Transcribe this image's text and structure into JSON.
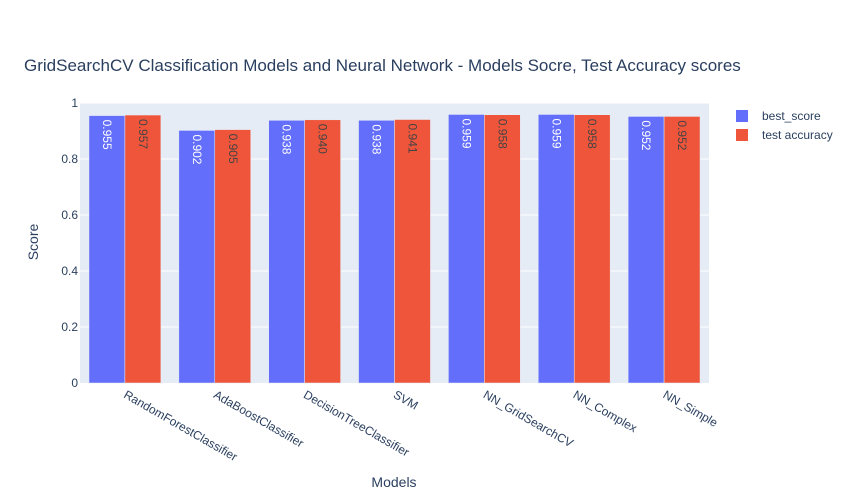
{
  "chart_data": {
    "type": "bar",
    "title": "GridSearchCV Classification Models and Neural Network - Models Socre, Test Accuracy scores",
    "xlabel": "Models",
    "ylabel": "Score",
    "ylim": [
      0,
      1
    ],
    "yticks": [
      "0",
      "0.2",
      "0.4",
      "0.6",
      "0.8",
      "1"
    ],
    "categories": [
      "RandomForestClassifier",
      "AdaBoostClassifier",
      "DecisionTreeClassifier",
      "SVM",
      "NN_GridSearchCV",
      "NN_Complex",
      "NN_Simple"
    ],
    "series": [
      {
        "name": "best_score",
        "color": "#636efa",
        "values": [
          0.955,
          0.902,
          0.938,
          0.938,
          0.959,
          0.959,
          0.952
        ],
        "labels": [
          "0.955",
          "0.902",
          "0.938",
          "0.938",
          "0.959",
          "0.959",
          "0.952"
        ]
      },
      {
        "name": "test accuracy",
        "color": "#ef553b",
        "values": [
          0.957,
          0.905,
          0.94,
          0.941,
          0.958,
          0.958,
          0.952
        ],
        "labels": [
          "0.957",
          "0.905",
          "0.940",
          "0.941",
          "0.958",
          "0.958",
          "0.952"
        ]
      }
    ],
    "grid": true,
    "legend_position": "top-right",
    "background": "#e5ecf6"
  }
}
